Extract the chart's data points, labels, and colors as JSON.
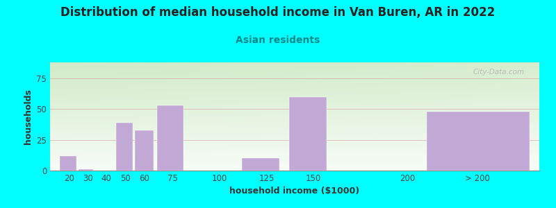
{
  "title": "Distribution of median household income in Van Buren, AR in 2022",
  "subtitle": "Asian residents",
  "xlabel": "household income ($1000)",
  "ylabel": "households",
  "background_color": "#00FFFF",
  "bar_color": "#c2a8d4",
  "categories": [
    "20",
    "30",
    "40",
    "50",
    "60",
    "75",
    "100",
    "125",
    "150",
    "200",
    "> 200"
  ],
  "bar_lefts": [
    15,
    25,
    35,
    45,
    55,
    67,
    90,
    112,
    137,
    175,
    210
  ],
  "bar_widths": [
    9,
    8,
    8,
    9,
    10,
    14,
    18,
    20,
    20,
    18,
    55
  ],
  "values": [
    12,
    1,
    0,
    39,
    33,
    53,
    0,
    10,
    60,
    0,
    48
  ],
  "xtick_pos": [
    20,
    30,
    40,
    50,
    60,
    75,
    100,
    125,
    150,
    200,
    237
  ],
  "xtick_labels": [
    "20",
    "30",
    "40",
    "50",
    "60",
    "75",
    "100",
    "125",
    "150",
    "200",
    "> 200"
  ],
  "xlim": [
    10,
    270
  ],
  "ylim": [
    0,
    88
  ],
  "yticks": [
    0,
    25,
    50,
    75
  ],
  "watermark": "City-Data.com",
  "title_fontsize": 12,
  "subtitle_fontsize": 10,
  "axis_label_fontsize": 9,
  "tick_fontsize": 8.5
}
